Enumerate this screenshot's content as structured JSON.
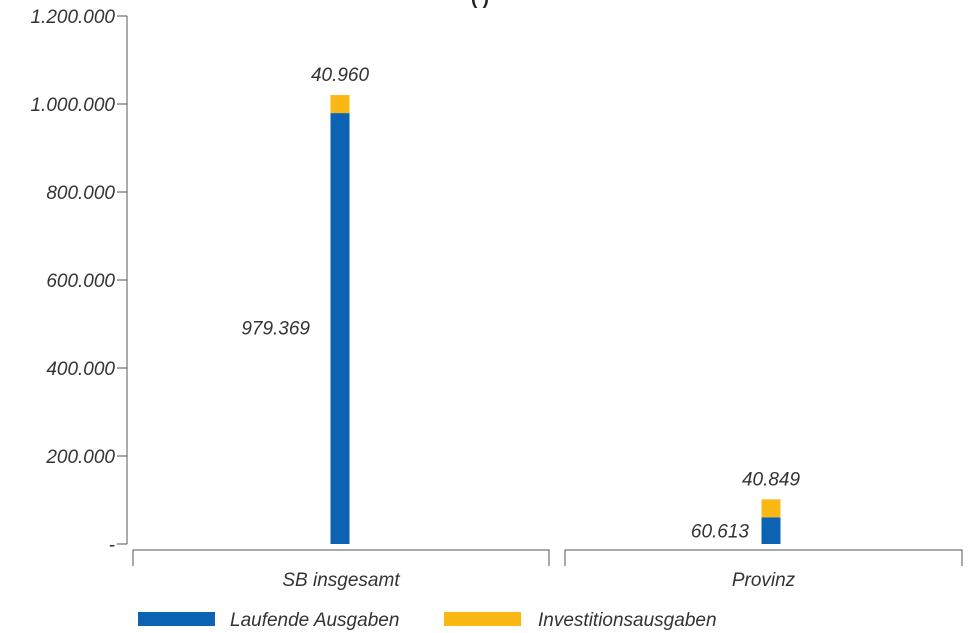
{
  "title_fragment": "(          )",
  "chart_data": {
    "type": "bar",
    "stacked": true,
    "categories": [
      "SB insgesamt",
      "Provinz"
    ],
    "series": [
      {
        "name": "Laufende Ausgaben",
        "values": [
          979369,
          60613
        ],
        "color": "#0d63b3"
      },
      {
        "name": "Investitionsausgaben",
        "values": [
          40960,
          40849
        ],
        "color": "#fbb714"
      }
    ],
    "data_labels": [
      [
        "979.369",
        "60.613"
      ],
      [
        "40.960",
        "40.849"
      ]
    ],
    "y_ticks": [
      {
        "value": 0,
        "label": "-"
      },
      {
        "value": 200000,
        "label": "200.000"
      },
      {
        "value": 400000,
        "label": "400.000"
      },
      {
        "value": 600000,
        "label": "600.000"
      },
      {
        "value": 800000,
        "label": "800.000"
      },
      {
        "value": 1000000,
        "label": "1.000.000"
      },
      {
        "value": 1200000,
        "label": "1.200.000"
      }
    ],
    "ylim": [
      0,
      1200000
    ],
    "grid": false,
    "legend_position": "bottom"
  }
}
